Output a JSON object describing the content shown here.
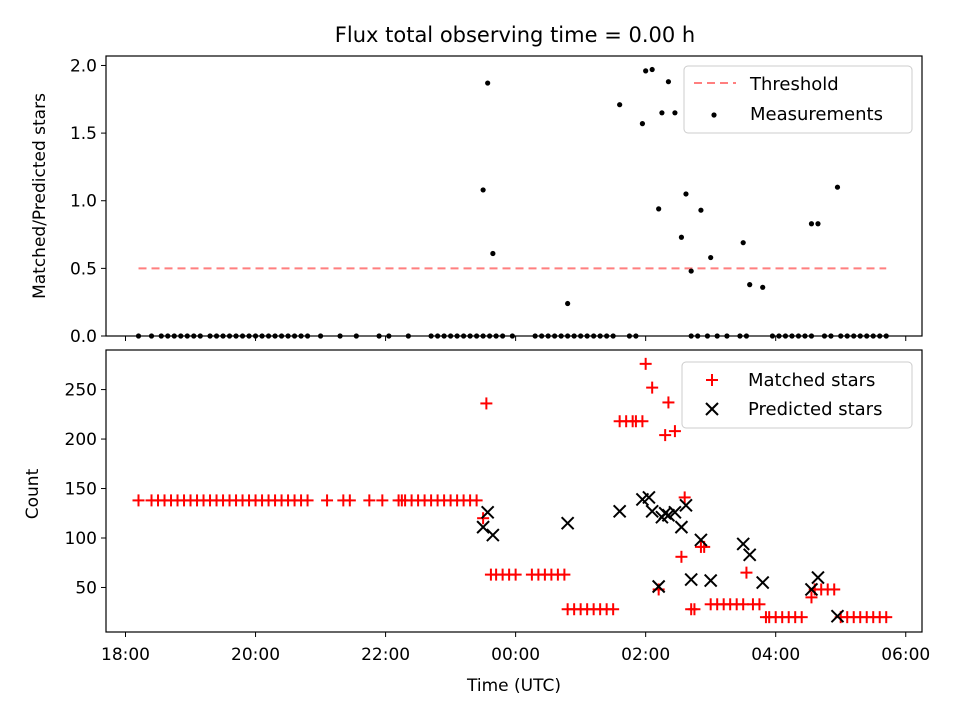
{
  "chart_data": [
    {
      "type": "scatter",
      "title": "Flux total observing time = 0.00 h",
      "xlabel": "",
      "ylabel": "Matched/Predicted stars",
      "ylim": [
        0,
        2.07
      ],
      "yticks": [
        "0.0",
        "0.5",
        "1.0",
        "1.5",
        "2.0"
      ],
      "ytick_values": [
        0,
        0.5,
        1.0,
        1.5,
        2.0
      ],
      "xlim_hours": [
        -6.3,
        6.25
      ],
      "legend_position": "top-right",
      "threshold": {
        "name": "Threshold",
        "value": 0.5,
        "x_range_hours": [
          -5.8,
          5.7
        ],
        "color": "#ff7f7f"
      },
      "series": [
        {
          "name": "Measurements",
          "color": "#000000",
          "x_hours": [
            -5.8,
            -5.6,
            -5.45,
            -5.35,
            -5.25,
            -5.15,
            -5.05,
            -4.95,
            -4.85,
            -4.7,
            -4.6,
            -4.5,
            -4.4,
            -4.3,
            -4.2,
            -4.1,
            -4.0,
            -3.9,
            -3.8,
            -3.7,
            -3.6,
            -3.5,
            -3.4,
            -3.3,
            -3.2,
            -3.0,
            -2.7,
            -2.45,
            -2.1,
            -1.95,
            -1.65,
            -1.3,
            -1.2,
            -1.1,
            -1.0,
            -0.9,
            -0.8,
            -0.7,
            -0.6,
            -0.5,
            -0.4,
            -0.3,
            -0.2,
            -0.05,
            0.3,
            0.4,
            0.5,
            0.6,
            0.7,
            0.8,
            0.9,
            1.0,
            1.1,
            1.2,
            1.3,
            1.4,
            1.5,
            1.75,
            1.85,
            2.7,
            2.8,
            2.95,
            3.1,
            3.25,
            3.45,
            3.55,
            3.95,
            4.05,
            4.15,
            4.25,
            4.35,
            4.45,
            4.55,
            4.75,
            4.85,
            5.0,
            5.1,
            5.2,
            5.3,
            5.4,
            5.5,
            5.6,
            5.7,
            -0.5,
            -0.43,
            -0.35,
            0.8,
            1.6,
            1.95,
            2.0,
            2.1,
            2.2,
            2.25,
            2.35,
            2.45,
            2.55,
            2.62,
            2.7,
            2.85,
            3.0,
            3.5,
            3.6,
            3.8,
            4.55,
            4.65,
            4.95
          ],
          "y": [
            0,
            0,
            0,
            0,
            0,
            0,
            0,
            0,
            0,
            0,
            0,
            0,
            0,
            0,
            0,
            0,
            0,
            0,
            0,
            0,
            0,
            0,
            0,
            0,
            0,
            0,
            0,
            0,
            0,
            0,
            0,
            0,
            0,
            0,
            0,
            0,
            0,
            0,
            0,
            0,
            0,
            0,
            0,
            0,
            0,
            0,
            0,
            0,
            0,
            0,
            0,
            0,
            0,
            0,
            0,
            0,
            0,
            0,
            0,
            0,
            0,
            0,
            0,
            0,
            0,
            0,
            0,
            0,
            0,
            0,
            0,
            0,
            0,
            0,
            0,
            0,
            0,
            0,
            0,
            0,
            0,
            0,
            0,
            1.08,
            1.87,
            0.61,
            0.24,
            1.71,
            1.57,
            1.96,
            1.97,
            0.94,
            1.65,
            1.88,
            1.65,
            0.73,
            1.05,
            0.48,
            0.93,
            0.58,
            0.69,
            0.38,
            0.36,
            0.83,
            0.83,
            1.1
          ]
        }
      ]
    },
    {
      "type": "scatter",
      "title": "",
      "xlabel": "Time (UTC)",
      "ylabel": "Count",
      "ylim": [
        5,
        290
      ],
      "yticks": [
        "50",
        "100",
        "150",
        "200",
        "250"
      ],
      "ytick_values": [
        50,
        100,
        150,
        200,
        250
      ],
      "xlim_hours": [
        -6.3,
        6.25
      ],
      "xticks": [
        "18:00",
        "20:00",
        "22:00",
        "00:00",
        "02:00",
        "04:00",
        "06:00"
      ],
      "xtick_values_hours": [
        -6,
        -4,
        -2,
        0,
        2,
        4,
        6
      ],
      "legend_position": "top-right",
      "series": [
        {
          "name": "Matched stars",
          "marker": "+",
          "color": "#ff0000",
          "x_hours": [
            -5.8,
            -5.6,
            -5.5,
            -5.4,
            -5.3,
            -5.2,
            -5.1,
            -5.0,
            -4.9,
            -4.8,
            -4.7,
            -4.6,
            -4.5,
            -4.4,
            -4.3,
            -4.2,
            -4.1,
            -4.0,
            -3.9,
            -3.8,
            -3.7,
            -3.6,
            -3.5,
            -3.4,
            -3.3,
            -3.2,
            -2.9,
            -2.65,
            -2.55,
            -2.25,
            -2.05,
            -1.75,
            -1.8,
            -1.7,
            -1.6,
            -1.5,
            -1.4,
            -1.3,
            -1.2,
            -1.1,
            -1.0,
            -0.9,
            -0.8,
            -0.7,
            -0.6,
            -0.5,
            -0.45,
            -0.38,
            -0.3,
            -0.2,
            -0.1,
            0.0,
            0.25,
            0.35,
            0.45,
            0.55,
            0.65,
            0.75,
            0.8,
            0.9,
            1.0,
            1.1,
            1.2,
            1.3,
            1.4,
            1.5,
            1.6,
            1.7,
            1.8,
            1.85,
            1.95,
            2.0,
            2.1,
            2.2,
            2.3,
            2.35,
            2.45,
            2.55,
            2.6,
            2.7,
            2.75,
            2.85,
            2.9,
            3.0,
            3.1,
            3.2,
            3.3,
            3.4,
            3.5,
            3.55,
            3.65,
            3.75,
            3.85,
            3.9,
            4.0,
            4.1,
            4.2,
            4.3,
            4.4,
            4.55,
            4.6,
            4.7,
            4.8,
            4.9,
            5.0,
            5.1,
            5.2,
            5.3,
            5.4,
            5.5,
            5.6,
            5.7
          ],
          "y": [
            138,
            138,
            138,
            138,
            138,
            138,
            138,
            138,
            138,
            138,
            138,
            138,
            138,
            138,
            138,
            138,
            138,
            138,
            138,
            138,
            138,
            138,
            138,
            138,
            138,
            138,
            138,
            138,
            138,
            138,
            138,
            138,
            138,
            138,
            138,
            138,
            138,
            138,
            138,
            138,
            138,
            138,
            138,
            138,
            138,
            120,
            236,
            63,
            63,
            63,
            63,
            63,
            63,
            63,
            63,
            63,
            63,
            63,
            28,
            28,
            28,
            28,
            28,
            28,
            28,
            28,
            218,
            218,
            218,
            218,
            218,
            276,
            252,
            48,
            204,
            237,
            208,
            81,
            141,
            28,
            28,
            91,
            91,
            33,
            33,
            33,
            33,
            33,
            33,
            65,
            33,
            33,
            20,
            20,
            20,
            20,
            20,
            20,
            20,
            40,
            48,
            48,
            48,
            48,
            20,
            20,
            20,
            20,
            20,
            20,
            20,
            20
          ]
        },
        {
          "name": "Predicted stars",
          "marker": "x",
          "color": "#000000",
          "x_hours": [
            -0.5,
            -0.43,
            -0.35,
            0.8,
            1.6,
            1.95,
            2.05,
            2.1,
            2.2,
            2.25,
            2.3,
            2.35,
            2.45,
            2.55,
            2.62,
            2.7,
            2.85,
            3.0,
            3.5,
            3.6,
            3.8,
            4.55,
            4.65,
            4.95
          ],
          "y": [
            111,
            126,
            103,
            115,
            127,
            139,
            141,
            127,
            51,
            121,
            125,
            123,
            126,
            111,
            133,
            58,
            98,
            57,
            94,
            83,
            55,
            48,
            60,
            21
          ]
        }
      ]
    }
  ]
}
